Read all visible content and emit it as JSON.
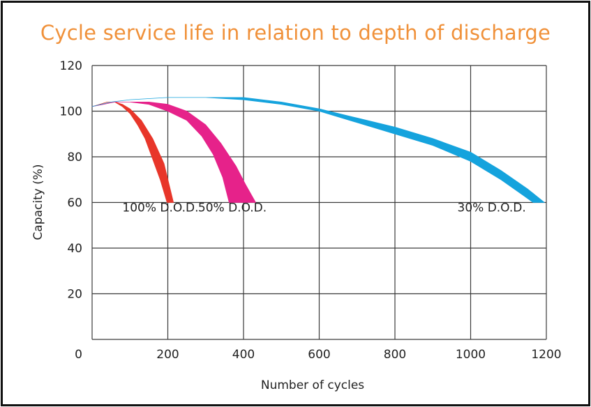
{
  "chart_data": {
    "type": "area",
    "title": "Cycle service life in relation to depth of discharge",
    "xlabel": "Number of cycles",
    "ylabel": "Capacity (%)",
    "xlim": [
      0,
      1200
    ],
    "ylim": [
      0,
      120
    ],
    "xticks": [
      0,
      200,
      400,
      600,
      800,
      1000,
      1200
    ],
    "yticks": [
      20,
      40,
      60,
      80,
      100,
      120
    ],
    "grid": true,
    "series": [
      {
        "name": "100% D.O.D.",
        "color": "#e8362a",
        "upper": [
          [
            0,
            102
          ],
          [
            20,
            103
          ],
          [
            40,
            104
          ],
          [
            60,
            104
          ],
          [
            80,
            102
          ],
          [
            100,
            99
          ],
          [
            120,
            94
          ],
          [
            140,
            88
          ],
          [
            160,
            79
          ],
          [
            180,
            70
          ],
          [
            198,
            60
          ]
        ],
        "lower": [
          [
            0,
            102
          ],
          [
            20,
            103
          ],
          [
            40,
            104
          ],
          [
            60,
            104
          ],
          [
            80,
            103
          ],
          [
            100,
            101
          ],
          [
            130,
            96
          ],
          [
            160,
            88
          ],
          [
            190,
            77
          ],
          [
            215,
            60
          ]
        ]
      },
      {
        "name": "50% D.O.D.",
        "color": "#e6228a",
        "upper": [
          [
            0,
            102
          ],
          [
            30,
            103
          ],
          [
            60,
            104
          ],
          [
            100,
            104
          ],
          [
            150,
            103
          ],
          [
            200,
            100
          ],
          [
            250,
            96
          ],
          [
            290,
            89
          ],
          [
            320,
            81
          ],
          [
            345,
            71
          ],
          [
            362,
            60
          ]
        ],
        "lower": [
          [
            0,
            102
          ],
          [
            30,
            103
          ],
          [
            60,
            104
          ],
          [
            100,
            104
          ],
          [
            150,
            104
          ],
          [
            200,
            103
          ],
          [
            250,
            100
          ],
          [
            300,
            94
          ],
          [
            340,
            86
          ],
          [
            380,
            76
          ],
          [
            405,
            68
          ],
          [
            432,
            60
          ]
        ]
      },
      {
        "name": "30% D.O.D.",
        "color": "#15a3dd",
        "upper": [
          [
            0,
            102
          ],
          [
            50,
            104
          ],
          [
            100,
            105
          ],
          [
            200,
            106
          ],
          [
            300,
            106
          ],
          [
            400,
            105
          ],
          [
            500,
            103
          ],
          [
            600,
            100
          ],
          [
            700,
            95
          ],
          [
            800,
            90
          ],
          [
            900,
            85
          ],
          [
            1000,
            78
          ],
          [
            1080,
            70
          ],
          [
            1140,
            63
          ],
          [
            1165,
            60
          ]
        ],
        "lower": [
          [
            0,
            102
          ],
          [
            50,
            104
          ],
          [
            100,
            105
          ],
          [
            200,
            106
          ],
          [
            300,
            106
          ],
          [
            400,
            106
          ],
          [
            500,
            104
          ],
          [
            600,
            101
          ],
          [
            700,
            97
          ],
          [
            800,
            93
          ],
          [
            900,
            88
          ],
          [
            1000,
            82
          ],
          [
            1080,
            74
          ],
          [
            1150,
            66
          ],
          [
            1195,
            60
          ]
        ]
      }
    ],
    "series_labels": [
      {
        "text": "100% D.O.D.",
        "x": 80,
        "y": 56
      },
      {
        "text": "50% D.O.D.",
        "x": 280,
        "y": 56
      },
      {
        "text": "30% D.O.D.",
        "x": 965,
        "y": 56
      }
    ]
  }
}
